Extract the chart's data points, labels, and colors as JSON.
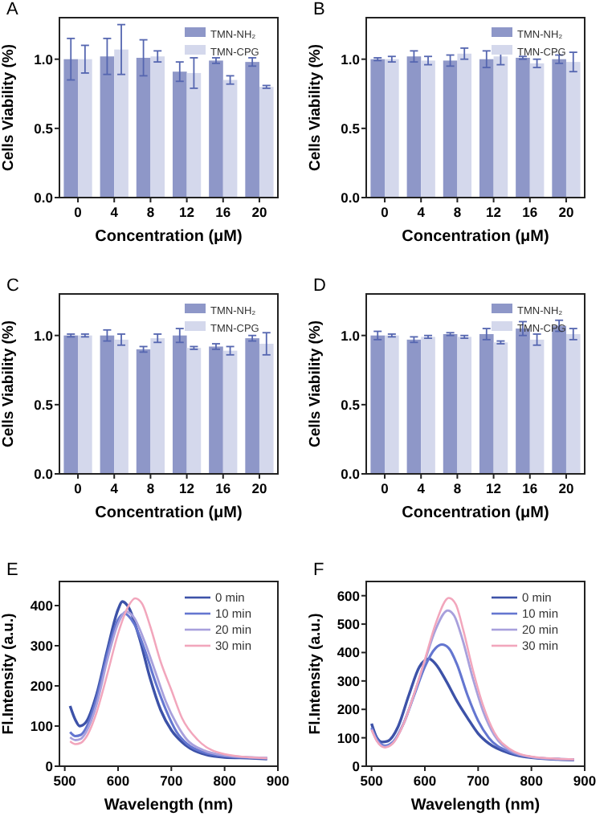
{
  "chart_data": [
    {
      "type": "bar",
      "title": "A",
      "xlabel": "Concentration (μM)",
      "ylabel": "Cells Viability (%)",
      "categories": [
        "0",
        "4",
        "8",
        "12",
        "16",
        "20"
      ],
      "ylim": [
        0,
        1.3
      ],
      "yticks": [
        {
          "value": 0,
          "label": "0.0"
        },
        {
          "value": 0.5,
          "label": "0.5"
        },
        {
          "value": 1,
          "label": "1.0"
        }
      ],
      "legend": "top right",
      "series": [
        {
          "name": "TMN-NH₂",
          "color": "#8e97c8",
          "values": [
            1.0,
            1.02,
            1.01,
            0.91,
            0.99,
            0.98
          ],
          "errors": [
            0.15,
            0.13,
            0.13,
            0.07,
            0.02,
            0.03
          ]
        },
        {
          "name": "TMN-CPG",
          "color": "#d4d8ec",
          "values": [
            1.0,
            1.07,
            1.02,
            0.9,
            0.85,
            0.8
          ],
          "errors": [
            0.1,
            0.18,
            0.04,
            0.11,
            0.03,
            0.01
          ]
        }
      ]
    },
    {
      "type": "bar",
      "title": "B",
      "xlabel": "Concentration (μM)",
      "ylabel": "Cells Viability (%)",
      "categories": [
        "0",
        "4",
        "8",
        "12",
        "16",
        "20"
      ],
      "ylim": [
        0,
        1.3
      ],
      "yticks": [
        {
          "value": 0,
          "label": "0.0"
        },
        {
          "value": 0.5,
          "label": "0.5"
        },
        {
          "value": 1,
          "label": "1.0"
        }
      ],
      "legend": "top right",
      "series": [
        {
          "name": "TMN-NH₂",
          "color": "#8e97c8",
          "values": [
            1.0,
            1.02,
            0.99,
            1.0,
            1.01,
            1.0
          ],
          "errors": [
            0.01,
            0.04,
            0.04,
            0.06,
            0.01,
            0.03
          ]
        },
        {
          "name": "TMN-CPG",
          "color": "#d4d8ec",
          "values": [
            1.0,
            0.99,
            1.04,
            1.02,
            0.97,
            0.98
          ],
          "errors": [
            0.02,
            0.03,
            0.04,
            0.06,
            0.03,
            0.07
          ]
        }
      ]
    },
    {
      "type": "bar",
      "title": "C",
      "xlabel": "Concentration (μM)",
      "ylabel": "Cells Viability (%)",
      "categories": [
        "0",
        "4",
        "8",
        "12",
        "16",
        "20"
      ],
      "ylim": [
        0,
        1.3
      ],
      "yticks": [
        {
          "value": 0,
          "label": "0.0"
        },
        {
          "value": 0.5,
          "label": "0.5"
        },
        {
          "value": 1,
          "label": "1.0"
        }
      ],
      "legend": "top right",
      "series": [
        {
          "name": "TMN-NH₂",
          "color": "#8e97c8",
          "values": [
            1.0,
            1.0,
            0.9,
            1.0,
            0.92,
            0.98
          ],
          "errors": [
            0.01,
            0.04,
            0.02,
            0.05,
            0.02,
            0.02
          ]
        },
        {
          "name": "TMN-CPG",
          "color": "#d4d8ec",
          "values": [
            1.0,
            0.97,
            0.98,
            0.91,
            0.89,
            0.94
          ],
          "errors": [
            0.01,
            0.04,
            0.03,
            0.01,
            0.03,
            0.08
          ]
        }
      ]
    },
    {
      "type": "bar",
      "title": "D",
      "xlabel": "Concentration (μM)",
      "ylabel": "Cells Viability (%)",
      "categories": [
        "0",
        "4",
        "8",
        "12",
        "16",
        "20"
      ],
      "ylim": [
        0,
        1.3
      ],
      "yticks": [
        {
          "value": 0,
          "label": "0.0"
        },
        {
          "value": 0.5,
          "label": "0.5"
        },
        {
          "value": 1,
          "label": "1.0"
        }
      ],
      "legend": "top right",
      "series": [
        {
          "name": "TMN-NH₂",
          "color": "#8e97c8",
          "values": [
            1.0,
            0.97,
            1.01,
            1.01,
            1.05,
            1.07
          ],
          "errors": [
            0.03,
            0.02,
            0.01,
            0.04,
            0.05,
            0.04
          ]
        },
        {
          "name": "TMN-CPG",
          "color": "#d4d8ec",
          "values": [
            1.0,
            0.99,
            0.99,
            0.95,
            0.97,
            1.01
          ],
          "errors": [
            0.01,
            0.01,
            0.01,
            0.01,
            0.04,
            0.04
          ]
        }
      ]
    },
    {
      "type": "line",
      "title": "E",
      "xlabel": "Wavelength (nm)",
      "ylabel": "Fl.Intensity (a.u.)",
      "xlim": [
        490,
        900
      ],
      "xticks": [
        500,
        600,
        700,
        800,
        900
      ],
      "ylim": [
        0,
        460
      ],
      "yticks": [
        0,
        100,
        200,
        300,
        400
      ],
      "legend": "top right",
      "series": [
        {
          "name": "0 min",
          "color": "#3d52a8",
          "x": [
            510,
            520,
            528,
            540,
            560,
            580,
            600,
            608,
            620,
            640,
            660,
            680,
            700,
            720,
            750,
            800,
            850,
            880
          ],
          "values": [
            150,
            115,
            100,
            110,
            180,
            290,
            390,
            410,
            395,
            320,
            220,
            140,
            90,
            60,
            35,
            22,
            20,
            18
          ]
        },
        {
          "name": "10 min",
          "color": "#6476d0",
          "x": [
            510,
            520,
            530,
            540,
            560,
            580,
            600,
            612,
            630,
            650,
            670,
            690,
            710,
            730,
            760,
            800,
            850,
            880
          ],
          "values": [
            85,
            75,
            78,
            95,
            170,
            280,
            365,
            380,
            355,
            290,
            210,
            140,
            85,
            55,
            35,
            25,
            21,
            20
          ]
        },
        {
          "name": "20 min",
          "color": "#a8a0dc",
          "x": [
            510,
            520,
            530,
            540,
            560,
            580,
            600,
            615,
            630,
            650,
            670,
            690,
            710,
            730,
            760,
            800,
            850,
            880
          ],
          "values": [
            72,
            65,
            68,
            85,
            155,
            265,
            355,
            385,
            370,
            310,
            235,
            160,
            105,
            65,
            40,
            27,
            22,
            20
          ]
        },
        {
          "name": "30 min",
          "color": "#f2a6bc",
          "x": [
            510,
            520,
            530,
            540,
            560,
            580,
            600,
            620,
            632,
            645,
            660,
            680,
            700,
            720,
            750,
            800,
            850,
            880
          ],
          "values": [
            62,
            55,
            58,
            72,
            135,
            230,
            330,
            400,
            418,
            405,
            350,
            260,
            190,
            120,
            65,
            30,
            22,
            20
          ]
        }
      ]
    },
    {
      "type": "line",
      "title": "F",
      "xlabel": "Wavelength (nm)",
      "ylabel": "Fl.Intensity (a.u.)",
      "xlim": [
        490,
        900
      ],
      "xticks": [
        500,
        600,
        700,
        800,
        900
      ],
      "ylim": [
        0,
        650
      ],
      "yticks": [
        0,
        100,
        200,
        300,
        400,
        500,
        600
      ],
      "legend": "top right",
      "series": [
        {
          "name": "0 min",
          "color": "#3d52a8",
          "x": [
            500,
            510,
            520,
            530,
            550,
            570,
            590,
            608,
            620,
            640,
            660,
            680,
            700,
            720,
            760,
            800,
            850,
            880
          ],
          "values": [
            150,
            100,
            85,
            88,
            140,
            250,
            350,
            378,
            360,
            300,
            230,
            170,
            115,
            80,
            45,
            30,
            24,
            22
          ]
        },
        {
          "name": "10 min",
          "color": "#6476d0",
          "x": [
            500,
            510,
            525,
            540,
            560,
            580,
            600,
            620,
            632,
            645,
            660,
            680,
            700,
            720,
            760,
            800,
            850,
            880
          ],
          "values": [
            135,
            95,
            72,
            85,
            150,
            250,
            350,
            415,
            428,
            415,
            360,
            250,
            160,
            100,
            50,
            32,
            25,
            23
          ]
        },
        {
          "name": "20 min",
          "color": "#a8a0dc",
          "x": [
            500,
            510,
            525,
            540,
            560,
            580,
            600,
            620,
            643,
            655,
            670,
            690,
            710,
            730,
            760,
            800,
            850,
            880
          ],
          "values": [
            130,
            90,
            68,
            82,
            150,
            255,
            370,
            480,
            548,
            530,
            450,
            310,
            190,
            110,
            55,
            32,
            25,
            23
          ]
        },
        {
          "name": "30 min",
          "color": "#f2a6bc",
          "x": [
            500,
            510,
            525,
            540,
            560,
            580,
            600,
            620,
            645,
            658,
            672,
            690,
            710,
            730,
            760,
            800,
            850,
            880
          ],
          "values": [
            128,
            88,
            66,
            80,
            148,
            255,
            375,
            500,
            592,
            570,
            480,
            340,
            210,
            120,
            60,
            34,
            26,
            24
          ]
        }
      ]
    }
  ]
}
